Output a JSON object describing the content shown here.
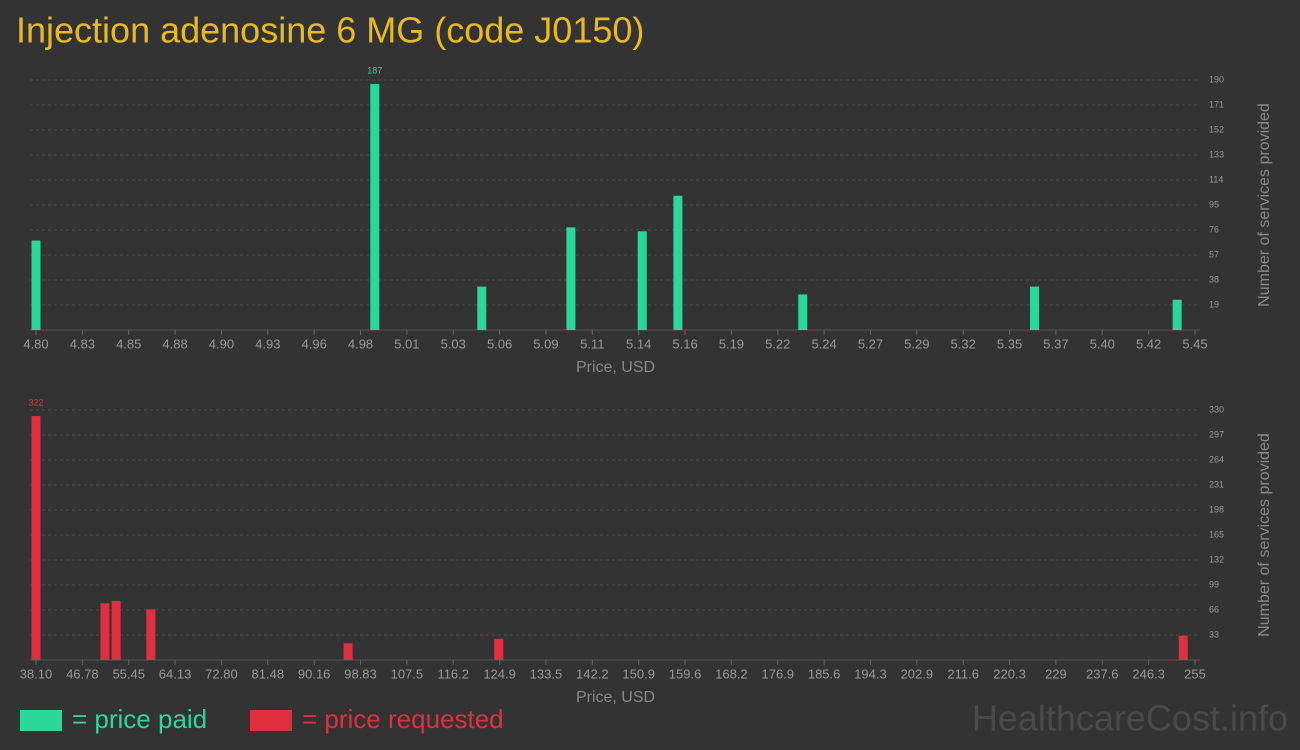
{
  "title": "Injection adenosine 6 MG (code J0150)",
  "watermark": "HealthcareCost.info",
  "chart_data": [
    {
      "type": "bar",
      "x_label": "Price, USD",
      "y_label": "Number of services provided",
      "grid": true,
      "series": [
        {
          "name": "= price paid",
          "color": "#2ad89a",
          "x": [
            4.8,
            4.99,
            5.05,
            5.1,
            5.14,
            5.16,
            5.23,
            5.36,
            5.44
          ],
          "values": [
            68,
            187,
            33,
            78,
            75,
            102,
            27,
            33,
            23
          ]
        }
      ],
      "xlim": [
        4.8,
        5.45
      ],
      "xticks": [
        {
          "value": 4.8,
          "label": "4.80"
        },
        {
          "value": 4.826,
          "label": "4.83"
        },
        {
          "value": 4.852,
          "label": "4.85"
        },
        {
          "value": 4.878,
          "label": "4.88"
        },
        {
          "value": 4.904,
          "label": "4.90"
        },
        4.93,
        {
          "value": 4.956,
          "label": "4.96"
        },
        {
          "value": 4.982,
          "label": "4.98"
        },
        {
          "value": 5.008,
          "label": "5.01"
        },
        {
          "value": 5.034,
          "label": "5.03"
        },
        5.06,
        {
          "value": 5.086,
          "label": "5.09"
        },
        {
          "value": 5.112,
          "label": "5.11"
        },
        {
          "value": 5.138,
          "label": "5.14"
        },
        {
          "value": 5.164,
          "label": "5.16"
        },
        5.19,
        {
          "value": 5.216,
          "label": "5.22"
        },
        {
          "value": 5.242,
          "label": "5.24"
        },
        {
          "value": 5.268,
          "label": "5.27"
        },
        {
          "value": 5.294,
          "label": "5.29"
        },
        5.32,
        {
          "value": 5.346,
          "label": "5.35"
        },
        {
          "value": 5.372,
          "label": "5.37"
        },
        {
          "value": 5.398,
          "label": "5.40"
        },
        {
          "value": 5.424,
          "label": "5.42"
        },
        5.45
      ],
      "ylim": [
        0,
        190
      ],
      "yticks": [
        19,
        38,
        57,
        76,
        95,
        114,
        133,
        152,
        171,
        190
      ]
    },
    {
      "type": "bar",
      "x_label": "Price, USD",
      "y_label": "Number of services provided",
      "grid": true,
      "series": [
        {
          "name": "= price requested",
          "color": "#e0303f",
          "x": [
            38.1,
            51.0,
            53.1,
            59.6,
            96.5,
            124.7,
            252.8
          ],
          "values": [
            322,
            75,
            78,
            67,
            22,
            28,
            32
          ]
        }
      ],
      "xlim": [
        38.1,
        255
      ],
      "xticks": [
        {
          "value": 38.1,
          "label": "38.10"
        },
        {
          "value": 46.776,
          "label": "46.78"
        },
        {
          "value": 55.452,
          "label": "55.45"
        },
        {
          "value": 64.128,
          "label": "64.13"
        },
        {
          "value": 72.804,
          "label": "72.80"
        },
        {
          "value": 81.48,
          "label": "81.48"
        },
        {
          "value": 90.156,
          "label": "90.16"
        },
        {
          "value": 98.832,
          "label": "98.83"
        },
        {
          "value": 107.508,
          "label": "107.5"
        },
        {
          "value": 116.184,
          "label": "116.2"
        },
        {
          "value": 124.86,
          "label": "124.9"
        },
        {
          "value": 133.536,
          "label": "133.5"
        },
        {
          "value": 142.212,
          "label": "142.2"
        },
        {
          "value": 150.888,
          "label": "150.9"
        },
        {
          "value": 159.564,
          "label": "159.6"
        },
        {
          "value": 168.24,
          "label": "168.2"
        },
        {
          "value": 176.916,
          "label": "176.9"
        },
        {
          "value": 185.592,
          "label": "185.6"
        },
        {
          "value": 194.268,
          "label": "194.3"
        },
        {
          "value": 202.944,
          "label": "202.9"
        },
        {
          "value": 211.62,
          "label": "211.6"
        },
        {
          "value": 220.296,
          "label": "220.3"
        },
        {
          "value": 228.972,
          "label": "229"
        },
        {
          "value": 237.648,
          "label": "237.6"
        },
        {
          "value": 246.324,
          "label": "246.3"
        },
        255
      ],
      "ylim": [
        0,
        330
      ],
      "yticks": [
        33,
        66,
        99,
        132,
        165,
        198,
        231,
        264,
        297,
        330
      ]
    }
  ]
}
